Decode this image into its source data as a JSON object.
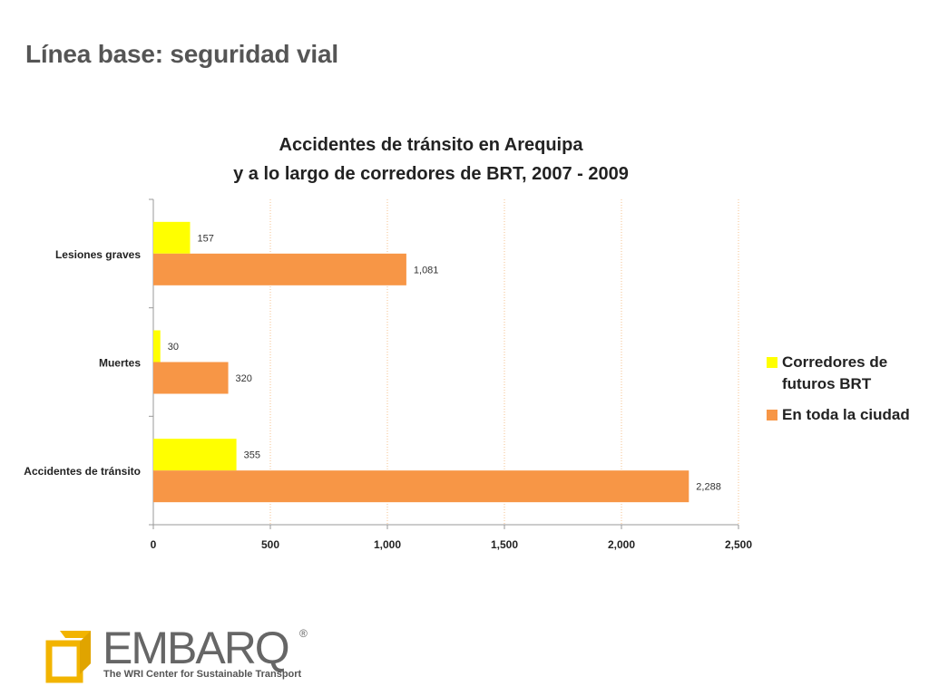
{
  "slide": {
    "title": "Línea base: seguridad vial"
  },
  "chart_data": {
    "type": "bar",
    "orientation": "horizontal",
    "title_lines": [
      "Accidentes de tránsito en Arequipa",
      "y a lo largo de corredores de BRT, 2007 - 2009"
    ],
    "categories": [
      "Lesiones graves",
      "Muertes",
      "Accidentes de tránsito"
    ],
    "series": [
      {
        "name": "Corredores de futuros BRT",
        "color": "#FFFF00",
        "values": [
          157,
          30,
          355
        ],
        "labels": [
          "157",
          "30",
          "355"
        ]
      },
      {
        "name": "En toda la ciudad",
        "color": "#F79646",
        "values": [
          1081,
          320,
          2288
        ],
        "labels": [
          "1,081",
          "320",
          "2,288"
        ]
      }
    ],
    "xlim": [
      0,
      2500
    ],
    "xticks": [
      0,
      500,
      1000,
      1500,
      2000,
      2500
    ],
    "xtick_labels": [
      "0",
      "500",
      "1,000",
      "1,500",
      "2,000",
      "2,500"
    ],
    "gridlines": "vertical dotted",
    "legend_position": "right"
  },
  "logo": {
    "name": "EMBARQ",
    "registered": "®",
    "tagline": "The WRI Center for Sustainable Transport",
    "accent_color": "#F2B400"
  }
}
